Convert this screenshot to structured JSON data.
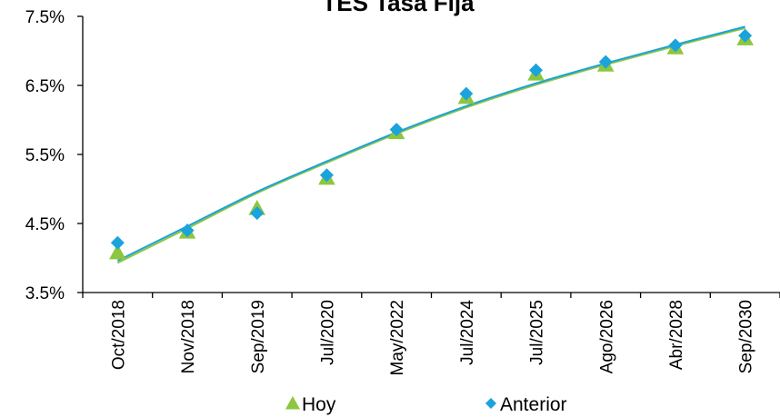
{
  "chart_data": {
    "type": "scatter",
    "title": "TES Tasa Fija",
    "xlabel": "",
    "ylabel": "",
    "categories": [
      "Oct/2018",
      "Nov/2018",
      "Sep/2019",
      "Jul/2020",
      "May/2022",
      "Jul/2024",
      "Jul/2025",
      "Ago/2026",
      "Abr/2028",
      "Sep/2030"
    ],
    "y_ticks": [
      "3.5%",
      "4.5%",
      "5.5%",
      "6.5%",
      "7.5%"
    ],
    "ylim": [
      3.5,
      7.5
    ],
    "grid": false,
    "legend_position": "bottom",
    "series": [
      {
        "name": "Hoy",
        "marker": "triangle",
        "color": "#8DC63F",
        "values": [
          4.08,
          4.38,
          4.72,
          5.16,
          5.82,
          6.33,
          6.67,
          6.8,
          7.05,
          7.18
        ],
        "trend": [
          3.93,
          4.43,
          4.94,
          5.38,
          5.8,
          6.18,
          6.51,
          6.8,
          7.07,
          7.33
        ]
      },
      {
        "name": "Anterior",
        "marker": "diamond",
        "color": "#1BA3DC",
        "values": [
          4.22,
          4.4,
          4.65,
          5.2,
          5.86,
          6.38,
          6.72,
          6.84,
          7.08,
          7.22
        ],
        "trend": [
          3.96,
          4.46,
          4.96,
          5.4,
          5.82,
          6.2,
          6.53,
          6.82,
          7.09,
          7.35
        ]
      }
    ]
  }
}
